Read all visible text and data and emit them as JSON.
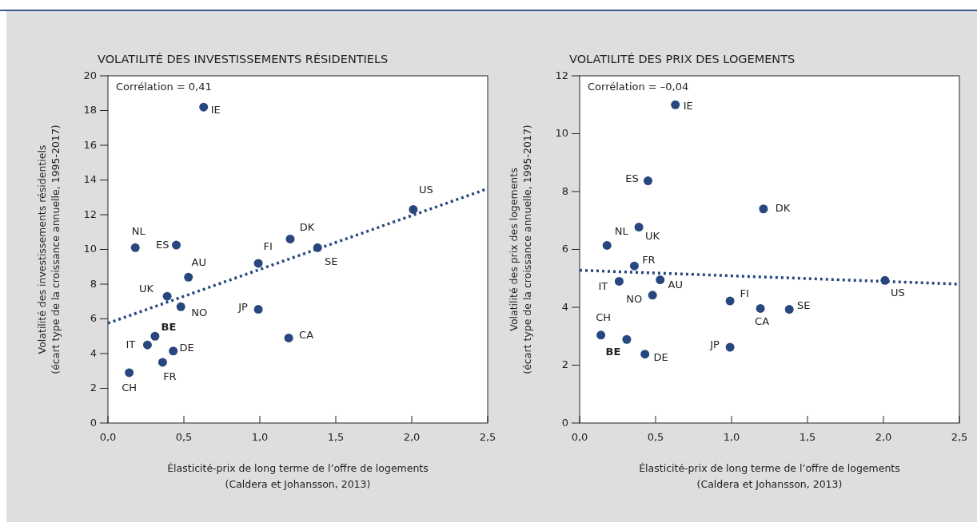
{
  "chart_data": [
    {
      "type": "scatter",
      "title": "VOLATILITÉ DES INVESTISSEMENTS RÉSIDENTIELS",
      "xlabel": "Élasticité-prix de long terme de l’offre de logements\n(Caldera et Johansson, 2013)",
      "ylabel": "Volatilité des investissements résidentiels\n(écart type de la croissance annuelle, 1995-2017)",
      "xlim": [
        0,
        2.5
      ],
      "ylim": [
        0,
        20
      ],
      "xticks": [
        {
          "value": 0,
          "label": "0,0"
        },
        {
          "value": 0.5,
          "label": "0,5"
        },
        {
          "value": 1,
          "label": "1,0"
        },
        {
          "value": 1.5,
          "label": "1,5"
        },
        {
          "value": 2,
          "label": "2,0"
        },
        {
          "value": 2.5,
          "label": "2,5"
        }
      ],
      "yticks": [
        0,
        2,
        4,
        6,
        8,
        10,
        12,
        14,
        16,
        18,
        20
      ],
      "grid": false,
      "series": [
        {
          "marker": "circle",
          "color": "#27477e",
          "x": [
            0.63,
            0.18,
            0.45,
            0.53,
            0.39,
            0.48,
            0.31,
            0.26,
            0.43,
            0.36,
            0.14,
            0.99,
            1.2,
            1.38,
            0.99,
            1.19,
            2.01
          ],
          "values": [
            18.2,
            10.1,
            10.25,
            8.4,
            7.3,
            6.7,
            5.0,
            4.5,
            4.15,
            3.5,
            2.9,
            9.2,
            10.6,
            10.1,
            6.55,
            4.9,
            12.3
          ]
        },
        {
          "type": "line",
          "color": "#27477e",
          "line_style": "dotted",
          "x": [
            0,
            2.5
          ],
          "values": [
            5.75,
            13.5
          ]
        }
      ],
      "annotations": [
        "Corrélation = 0,41",
        {
          "text": "IE",
          "x": 0.63,
          "y": 18.2
        },
        {
          "text": "NL",
          "x": 0.18,
          "y": 10.1
        },
        {
          "text": "ES",
          "x": 0.45,
          "y": 10.25
        },
        {
          "text": "AU",
          "x": 0.53,
          "y": 8.4
        },
        {
          "text": "UK",
          "x": 0.39,
          "y": 7.3
        },
        {
          "text": "NO",
          "x": 0.48,
          "y": 6.7
        },
        {
          "text": "BE",
          "x": 0.31,
          "y": 5.0
        },
        {
          "text": "IT",
          "x": 0.26,
          "y": 4.5
        },
        {
          "text": "DE",
          "x": 0.43,
          "y": 4.15
        },
        {
          "text": "FR",
          "x": 0.36,
          "y": 3.5
        },
        {
          "text": "CH",
          "x": 0.14,
          "y": 2.9
        },
        {
          "text": "FI",
          "x": 0.99,
          "y": 9.2
        },
        {
          "text": "DK",
          "x": 1.2,
          "y": 10.6
        },
        {
          "text": "SE",
          "x": 1.38,
          "y": 10.1
        },
        {
          "text": "JP",
          "x": 0.99,
          "y": 6.55
        },
        {
          "text": "CA",
          "x": 1.19,
          "y": 4.9
        },
        {
          "text": "US",
          "x": 2.01,
          "y": 12.3
        }
      ]
    },
    {
      "type": "scatter",
      "title": "VOLATILITÉ DES PRIX DES LOGEMENTS",
      "xlabel": "Élasticité-prix de long terme de l’offre de logements\n(Caldera et Johansson, 2013)",
      "ylabel": "Volatilité des prix des logements\n(écart type de la croissance annuelle, 1995-2017)",
      "xlim": [
        0,
        2.5
      ],
      "ylim": [
        0,
        12
      ],
      "xticks": [
        {
          "value": 0,
          "label": "0,0"
        },
        {
          "value": 0.5,
          "label": "0,5"
        },
        {
          "value": 1,
          "label": "1,0"
        },
        {
          "value": 1.5,
          "label": "1,5"
        },
        {
          "value": 2,
          "label": "2,0"
        },
        {
          "value": 2.5,
          "label": "2,5"
        }
      ],
      "yticks": [
        0,
        2,
        4,
        6,
        8,
        10,
        12
      ],
      "grid": false,
      "series": [
        {
          "marker": "circle",
          "color": "#27477e",
          "x": [
            0.63,
            0.18,
            0.45,
            0.53,
            0.39,
            0.48,
            0.31,
            0.26,
            0.43,
            0.36,
            0.14,
            0.99,
            1.21,
            1.38,
            0.99,
            1.19,
            2.01
          ],
          "values": [
            11.0,
            6.14,
            8.37,
            4.95,
            6.77,
            4.42,
            2.89,
            4.9,
            2.38,
            5.43,
            3.04,
            4.22,
            7.4,
            3.93,
            2.62,
            3.96,
            4.93
          ]
        },
        {
          "type": "line",
          "color": "#27477e",
          "line_style": "dotted",
          "x": [
            0,
            2.5
          ],
          "values": [
            5.28,
            4.8
          ]
        }
      ],
      "annotations": [
        "Corrélation = –0,04",
        {
          "text": "IE",
          "x": 0.63,
          "y": 11.0
        },
        {
          "text": "NL",
          "x": 0.18,
          "y": 6.14
        },
        {
          "text": "ES",
          "x": 0.45,
          "y": 8.37
        },
        {
          "text": "AU",
          "x": 0.53,
          "y": 4.95
        },
        {
          "text": "UK",
          "x": 0.39,
          "y": 6.77
        },
        {
          "text": "NO",
          "x": 0.48,
          "y": 4.42
        },
        {
          "text": "BE",
          "x": 0.31,
          "y": 2.89
        },
        {
          "text": "IT",
          "x": 0.26,
          "y": 4.9
        },
        {
          "text": "DE",
          "x": 0.43,
          "y": 2.38
        },
        {
          "text": "FR",
          "x": 0.36,
          "y": 5.43
        },
        {
          "text": "CH",
          "x": 0.14,
          "y": 3.04
        },
        {
          "text": "FI",
          "x": 0.99,
          "y": 4.22
        },
        {
          "text": "DK",
          "x": 1.21,
          "y": 7.4
        },
        {
          "text": "SE",
          "x": 1.38,
          "y": 3.93
        },
        {
          "text": "JP",
          "x": 0.99,
          "y": 2.62
        },
        {
          "text": "CA",
          "x": 1.19,
          "y": 3.96
        },
        {
          "text": "US",
          "x": 2.01,
          "y": 4.93
        }
      ]
    }
  ]
}
